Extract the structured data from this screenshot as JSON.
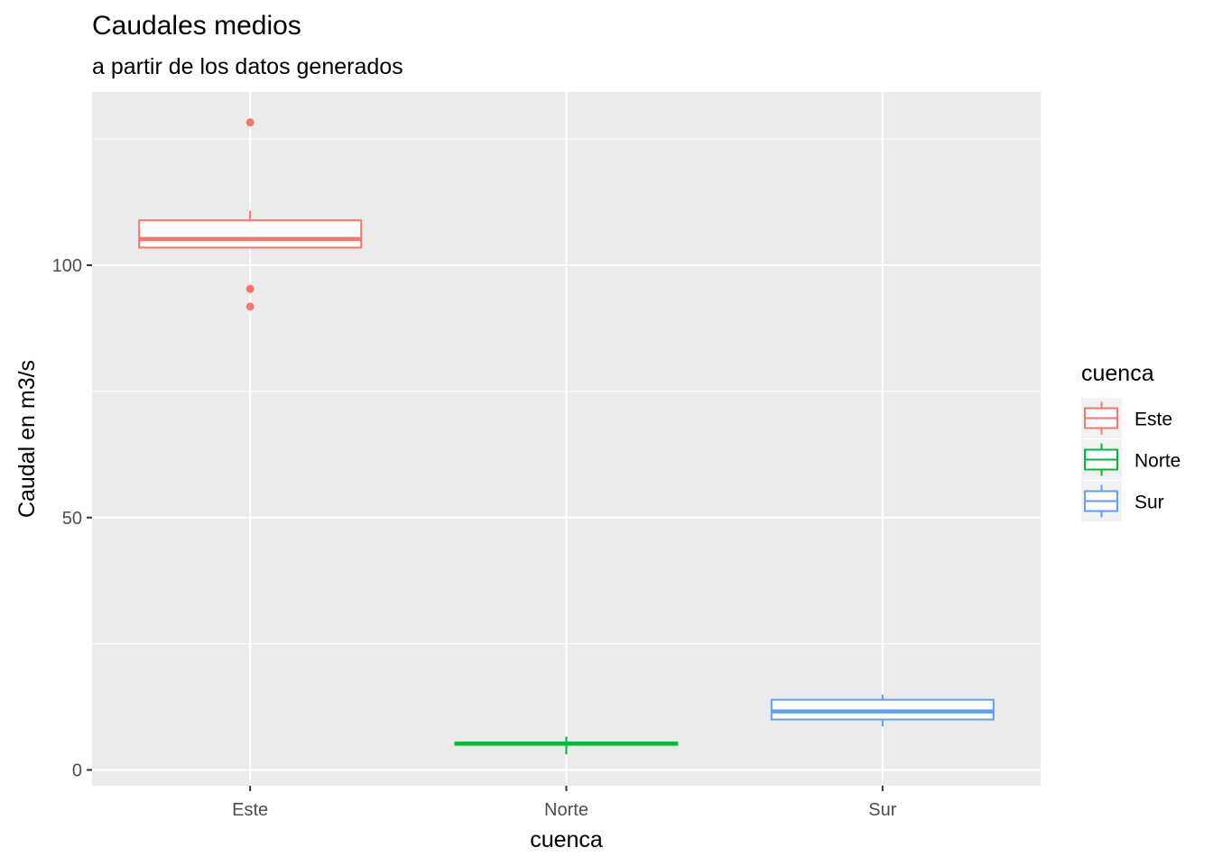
{
  "chart_data": {
    "type": "boxplot",
    "title": "Caudales medios",
    "subtitle": "a partir de los datos generados",
    "xlabel": "cuenca",
    "ylabel": "Caudal en m3/s",
    "categories": [
      "Este",
      "Norte",
      "Sur"
    ],
    "ylim": [
      -3,
      134
    ],
    "yticks": [
      0,
      50,
      100
    ],
    "grid": true,
    "legend": {
      "title": "cuenca",
      "position": "right",
      "entries": [
        "Este",
        "Norte",
        "Sur"
      ]
    },
    "series": [
      {
        "name": "Este",
        "color": "#F8766D",
        "whisker_low": 103.5,
        "q1": 103.5,
        "median": 105.2,
        "q3": 108.9,
        "whisker_high": 110.8,
        "outliers": [
          128.3,
          95.3,
          91.8
        ]
      },
      {
        "name": "Norte",
        "color": "#00BA38",
        "whisker_low": 3.1,
        "q1": 5.0,
        "median": 5.2,
        "q3": 5.4,
        "whisker_high": 6.6,
        "outliers": []
      },
      {
        "name": "Sur",
        "color": "#619CFF",
        "whisker_low": 8.6,
        "q1": 10.0,
        "median": 11.6,
        "q3": 13.9,
        "whisker_high": 14.9,
        "outliers": []
      }
    ]
  }
}
